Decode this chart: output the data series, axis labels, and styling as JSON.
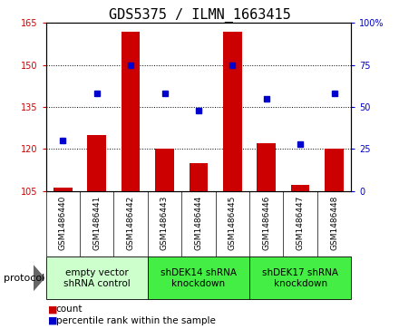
{
  "title": "GDS5375 / ILMN_1663415",
  "samples": [
    "GSM1486440",
    "GSM1486441",
    "GSM1486442",
    "GSM1486443",
    "GSM1486444",
    "GSM1486445",
    "GSM1486446",
    "GSM1486447",
    "GSM1486448"
  ],
  "counts": [
    106,
    125,
    162,
    120,
    115,
    162,
    122,
    107,
    120
  ],
  "percentiles": [
    30,
    58,
    75,
    58,
    48,
    75,
    55,
    28,
    58
  ],
  "ylim_left": [
    105,
    165
  ],
  "ylim_right": [
    0,
    100
  ],
  "yticks_left": [
    105,
    120,
    135,
    150,
    165
  ],
  "yticks_right": [
    0,
    25,
    50,
    75,
    100
  ],
  "bar_color": "#cc0000",
  "dot_color": "#0000cc",
  "bar_width": 0.55,
  "groups": [
    {
      "label": "empty vector\nshRNA control",
      "spans": [
        0,
        2
      ],
      "color": "#ccffcc"
    },
    {
      "label": "shDEK14 shRNA\nknockdown",
      "spans": [
        3,
        5
      ],
      "color": "#44ee44"
    },
    {
      "label": "shDEK17 shRNA\nknockdown",
      "spans": [
        6,
        8
      ],
      "color": "#44ee44"
    }
  ],
  "legend_count_color": "#cc0000",
  "legend_pct_color": "#0000cc",
  "protocol_label": "protocol",
  "bg_color": "#ffffff",
  "plot_bg_color": "#ffffff",
  "tick_color_left": "#cc0000",
  "tick_color_right": "#0000cc",
  "title_fontsize": 11,
  "tick_label_fontsize": 7,
  "sample_fontsize": 6.5,
  "group_fontsize": 7.5,
  "legend_fontsize": 7.5
}
